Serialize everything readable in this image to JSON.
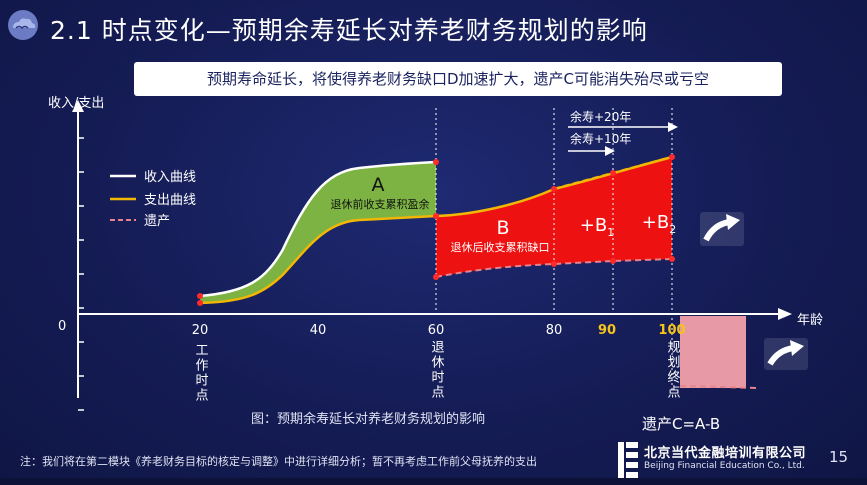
{
  "header": {
    "title": "2.1 时点变化—预期余寿延长对养老财务规划的影响",
    "subtitle": "预期寿命延长，将使得养老财务缺口D加速扩大，遗产C可能消失殆尽或亏空"
  },
  "colors": {
    "income_curve": "#ffffff",
    "expense_curve": "#f2b705",
    "legacy_line": "#e8838c",
    "surplus_area": "#7cb342",
    "gap_area": "#ee1111",
    "legacy_area": "#e79aa6",
    "highlight_text": "#f5c518"
  },
  "chart_data": {
    "type": "area",
    "title": "",
    "caption": "图：预期余寿延长对养老财务规划的影响",
    "ylabel": "收入/支出",
    "xlabel": "年龄",
    "origin_label": "0",
    "x_ticks": [
      "20",
      "40",
      "60",
      "80"
    ],
    "highlighted_ticks": [
      "90",
      "100"
    ],
    "legend": [
      {
        "label": "收入曲线",
        "style": "solid-white"
      },
      {
        "label": "支出曲线",
        "style": "solid-yellow"
      },
      {
        "label": "遗产",
        "style": "dashed-pink"
      }
    ],
    "markers": [
      {
        "age": 20,
        "label": "工作时点"
      },
      {
        "age": 60,
        "label": "退休时点"
      },
      {
        "age": 100,
        "label": "规划终点"
      }
    ],
    "regions": [
      {
        "id": "A",
        "label": "A",
        "description": "退休前收支累积盈余",
        "from_age": 20,
        "to_age": 60
      },
      {
        "id": "B",
        "label": "B",
        "description": "退休后收支累积缺口",
        "from_age": 60,
        "to_age": 80
      },
      {
        "id": "B1",
        "label": "+B",
        "sub": "1",
        "from_age": 80,
        "to_age": 90
      },
      {
        "id": "B2",
        "label": "+B",
        "sub": "2",
        "from_age": 90,
        "to_age": 100
      }
    ],
    "arrows": [
      {
        "label": "余寿+20年",
        "from_age": 80,
        "to_age": 100
      },
      {
        "label": "余寿+10年",
        "from_age": 80,
        "to_age": 90
      }
    ],
    "formula": "遗产C=A-B"
  },
  "footer": {
    "note": "注：我们将在第二模块《养老财务目标的核定与调整》中进行详细分析；暂不再考虑工作前父母抚养的支出",
    "company_cn": "北京当代金融培训有限公司",
    "company_en": "Beijing Financial Education Co., Ltd.",
    "page": "15"
  }
}
